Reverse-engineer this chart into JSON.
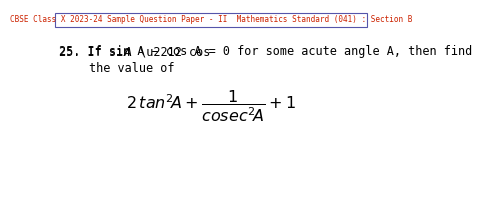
{
  "header_text": "CBSE Class X 2023-24 Sample Question Paper - II  Mathematics Standard (041) : Section B",
  "header_color": "#cc2200",
  "header_border": "#5555aa",
  "bg_color": "#ffffff",
  "text_color": "#000000",
  "font_size_header": 5.5,
  "font_size_question": 8.5,
  "font_size_formula": 11.5
}
